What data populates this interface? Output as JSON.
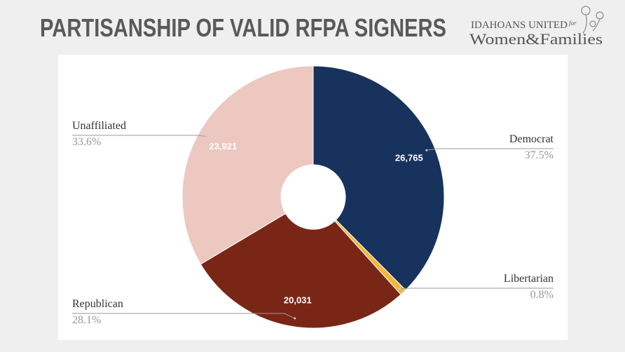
{
  "header": {
    "logo_line1": "IDAHOANS UNITED",
    "logo_for": "for",
    "logo_line2": "Women&Families"
  },
  "chart_data": {
    "type": "pie",
    "title": "PARTISANSHIP OF VALID RFPA SIGNERS",
    "categories": [
      "Democrat",
      "Libertarian",
      "Republican",
      "Unaffiliated"
    ],
    "values": [
      26765,
      570,
      20031,
      23921
    ],
    "value_labels": [
      "26,765",
      null,
      "20,031",
      "23,921"
    ],
    "percent_labels": [
      "37.5%",
      "0.8%",
      "28.1%",
      "33.6%"
    ],
    "colors": [
      "#17325c",
      "#f0b73a",
      "#7a2616",
      "#ecc8c0"
    ],
    "donut": true
  }
}
